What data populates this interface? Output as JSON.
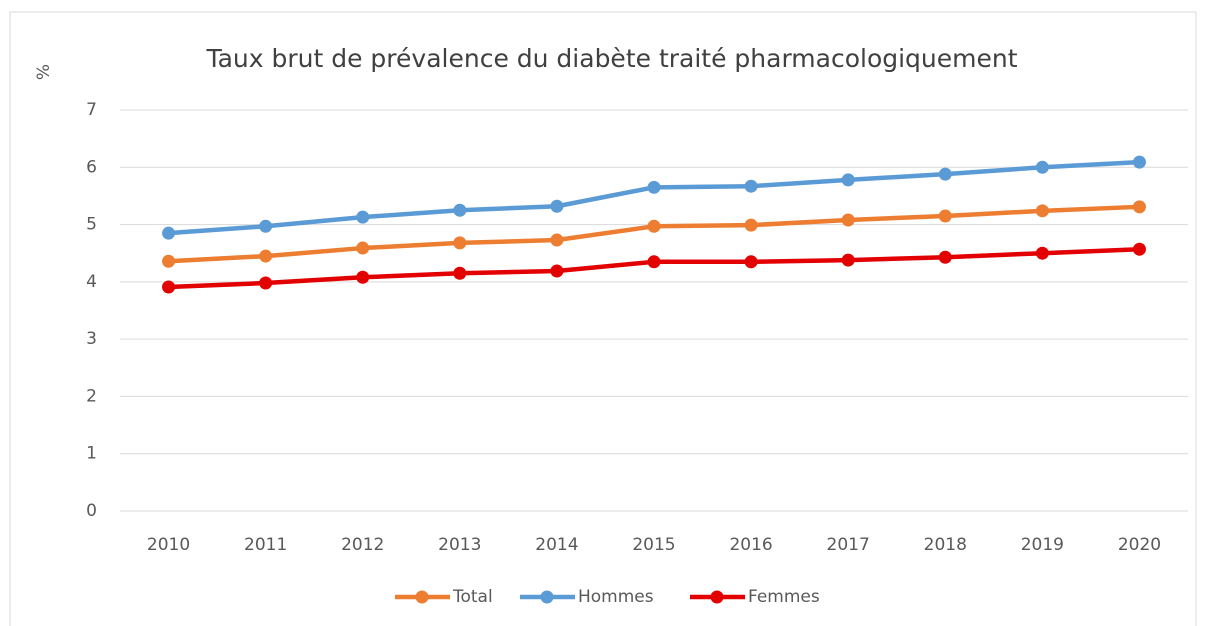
{
  "chart_data": {
    "type": "line",
    "title": "Taux brut de prévalence du diabète traité pharmacologiquement",
    "y_label": "%",
    "categories": [
      "2010",
      "2011",
      "2012",
      "2013",
      "2014",
      "2015",
      "2016",
      "2017",
      "2018",
      "2019",
      "2020"
    ],
    "series": [
      {
        "name": "Total",
        "color": "#ed7d31",
        "values": [
          4.36,
          4.45,
          4.59,
          4.68,
          4.73,
          4.97,
          4.99,
          5.08,
          5.15,
          5.24,
          5.31
        ]
      },
      {
        "name": "Hommes",
        "color": "#5b9bd5",
        "values": [
          4.85,
          4.97,
          5.13,
          5.25,
          5.32,
          5.65,
          5.67,
          5.78,
          5.88,
          6.0,
          6.09
        ]
      },
      {
        "name": "Femmes",
        "color": "#e30000",
        "values": [
          3.91,
          3.98,
          4.08,
          4.15,
          4.19,
          4.35,
          4.35,
          4.38,
          4.43,
          4.5,
          4.57
        ]
      }
    ],
    "ylim": [
      0,
      7
    ],
    "yticks": [
      0,
      1,
      2,
      3,
      4,
      5,
      6,
      7
    ],
    "grid": true,
    "legend": "bottom"
  }
}
